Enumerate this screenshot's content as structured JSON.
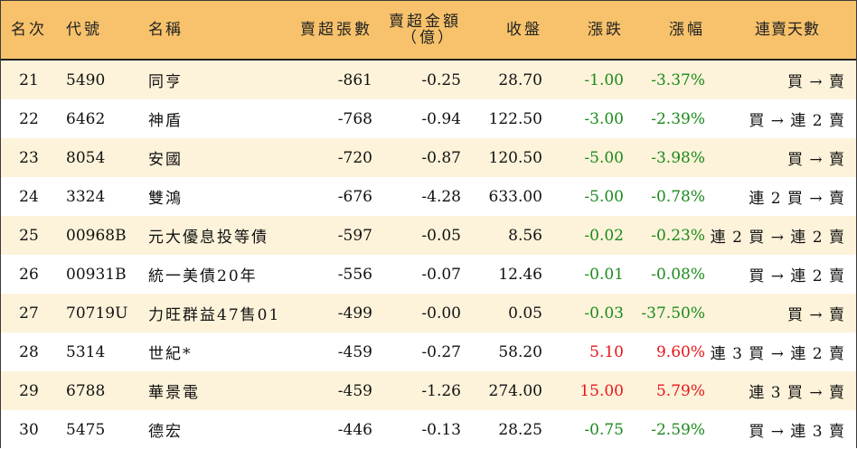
{
  "headers": {
    "rank": "名次",
    "code": "代號",
    "name": "名稱",
    "sell_volume": "賣超張數",
    "sell_amount_line1": "賣超金額",
    "sell_amount_line2": "（億）",
    "close": "收盤",
    "change": "漲跌",
    "change_pct": "漲幅",
    "streak": "連賣天數"
  },
  "colors": {
    "header_bg": "#f7c26b",
    "row_alt_bg": "#fdf3da",
    "up": "#e8161a",
    "down": "#1b8a1b"
  },
  "rows": [
    {
      "rank": "21",
      "code": "5490",
      "name": "同亨",
      "volume": "-861",
      "amount": "-0.25",
      "close": "28.70",
      "change": "-1.00",
      "pct": "-3.37%",
      "streak": "買 → 賣",
      "dir": "down"
    },
    {
      "rank": "22",
      "code": "6462",
      "name": "神盾",
      "volume": "-768",
      "amount": "-0.94",
      "close": "122.50",
      "change": "-3.00",
      "pct": "-2.39%",
      "streak": "買 → 連 2 賣",
      "dir": "down"
    },
    {
      "rank": "23",
      "code": "8054",
      "name": "安國",
      "volume": "-720",
      "amount": "-0.87",
      "close": "120.50",
      "change": "-5.00",
      "pct": "-3.98%",
      "streak": "買 → 賣",
      "dir": "down"
    },
    {
      "rank": "24",
      "code": "3324",
      "name": "雙鴻",
      "volume": "-676",
      "amount": "-4.28",
      "close": "633.00",
      "change": "-5.00",
      "pct": "-0.78%",
      "streak": "連 2 買 → 賣",
      "dir": "down"
    },
    {
      "rank": "25",
      "code": "00968B",
      "name": "元大優息投等債",
      "volume": "-597",
      "amount": "-0.05",
      "close": "8.56",
      "change": "-0.02",
      "pct": "-0.23%",
      "streak": "連 2 買 → 連 2 賣",
      "dir": "down"
    },
    {
      "rank": "26",
      "code": "00931B",
      "name": "統一美債20年",
      "volume": "-556",
      "amount": "-0.07",
      "close": "12.46",
      "change": "-0.01",
      "pct": "-0.08%",
      "streak": "買 → 連 2 賣",
      "dir": "down"
    },
    {
      "rank": "27",
      "code": "70719U",
      "name": "力旺群益47售01",
      "volume": "-499",
      "amount": "-0.00",
      "close": "0.05",
      "change": "-0.03",
      "pct": "-37.50%",
      "streak": "買 → 賣",
      "dir": "down"
    },
    {
      "rank": "28",
      "code": "5314",
      "name": "世紀*",
      "volume": "-459",
      "amount": "-0.27",
      "close": "58.20",
      "change": "5.10",
      "pct": "9.60%",
      "streak": "連 3 買 → 連 2 賣",
      "dir": "up"
    },
    {
      "rank": "29",
      "code": "6788",
      "name": "華景電",
      "volume": "-459",
      "amount": "-1.26",
      "close": "274.00",
      "change": "15.00",
      "pct": "5.79%",
      "streak": "連 3 買 → 賣",
      "dir": "up"
    },
    {
      "rank": "30",
      "code": "5475",
      "name": "德宏",
      "volume": "-446",
      "amount": "-0.13",
      "close": "28.25",
      "change": "-0.75",
      "pct": "-2.59%",
      "streak": "買 → 連 3 賣",
      "dir": "down"
    }
  ]
}
